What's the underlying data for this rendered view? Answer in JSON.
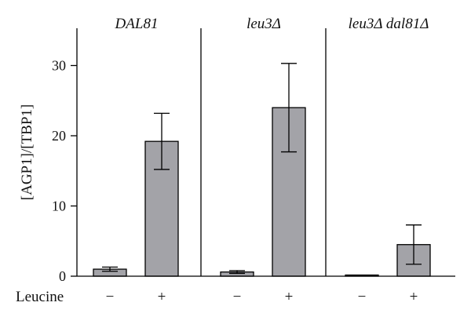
{
  "chart_data": {
    "type": "bar",
    "ylabel": "[AGP1]/[TBP1]",
    "ylim": [
      0,
      35
    ],
    "yticks": [
      0,
      10,
      20,
      30
    ],
    "row_label": "Leucine",
    "colors": {
      "bar": "#a3a3a8",
      "stroke": "#000000"
    },
    "groups": [
      {
        "name": "DAL81",
        "bars": [
          {
            "condition": "−",
            "value": 1.0,
            "error": 0.3
          },
          {
            "condition": "+",
            "value": 19.2,
            "error": 4.0
          }
        ]
      },
      {
        "name": "leu3Δ",
        "bars": [
          {
            "condition": "−",
            "value": 0.6,
            "error": 0.2
          },
          {
            "condition": "+",
            "value": 24.0,
            "error": 6.3
          }
        ]
      },
      {
        "name": "leu3Δ dal81Δ",
        "bars": [
          {
            "condition": "−",
            "value": 0.15,
            "error": 0.0
          },
          {
            "condition": "+",
            "value": 4.5,
            "error": 2.8
          }
        ]
      }
    ]
  }
}
